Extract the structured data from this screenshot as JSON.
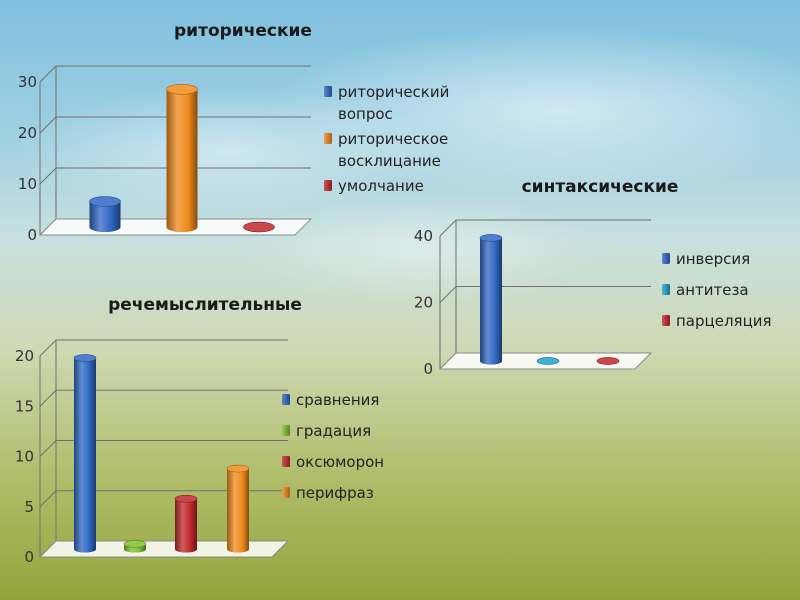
{
  "chart_data": [
    {
      "type": "bar",
      "title": "риторические",
      "categories": [
        "риторический вопрос",
        "риторическое восклицание",
        "умолчание"
      ],
      "legend": [
        {
          "lines": [
            "риторический",
            "вопрос"
          ],
          "color": "#2f67c4"
        },
        {
          "lines": [
            "риторическое",
            "восклицание"
          ],
          "color": "#f08a1c"
        },
        {
          "lines": [
            "умолчание"
          ],
          "color": "#c0282c"
        }
      ],
      "values": [
        5,
        27,
        0
      ],
      "yticks": [
        0,
        10,
        20,
        30
      ],
      "ylim": [
        0,
        30
      ]
    },
    {
      "type": "bar",
      "title": "синтаксические",
      "categories": [
        "инверсия",
        "антитеза",
        "парцеляция"
      ],
      "legend": [
        {
          "lines": [
            "инверсия"
          ],
          "color": "#2f67c4"
        },
        {
          "lines": [
            "антитеза"
          ],
          "color": "#22a0cc"
        },
        {
          "lines": [
            "парцеляция"
          ],
          "color": "#c0282c"
        }
      ],
      "values": [
        37,
        0,
        0
      ],
      "yticks": [
        0,
        20,
        40
      ],
      "ylim": [
        0,
        40
      ]
    },
    {
      "type": "bar",
      "title": "речемыслительные",
      "categories": [
        "сравнения",
        "градация",
        "оксюморон",
        "перифраз"
      ],
      "legend": [
        {
          "lines": [
            "сравнения"
          ],
          "color": "#2f67c4"
        },
        {
          "lines": [
            "градация"
          ],
          "color": "#7fbf2e"
        },
        {
          "lines": [
            "оксюморон"
          ],
          "color": "#c0282c"
        },
        {
          "lines": [
            "перифраз"
          ],
          "color": "#f08a1c"
        }
      ],
      "values": [
        19,
        0.5,
        5,
        8
      ],
      "yticks": [
        0,
        5,
        10,
        15,
        20
      ],
      "ylim": [
        0,
        20
      ]
    }
  ]
}
